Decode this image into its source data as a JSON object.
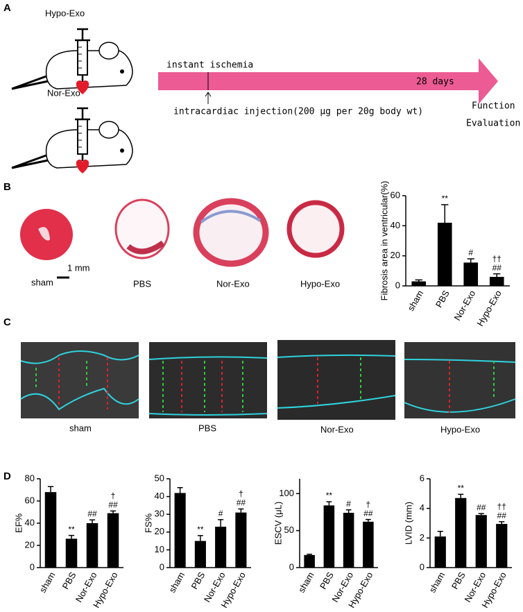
{
  "panel_labels": [
    "A",
    "B",
    "C",
    "D"
  ],
  "schematic": {
    "groups": [
      "Hypo-Exo",
      "Nor-Exo"
    ],
    "start": "instant ischemia",
    "duration": "28 days",
    "injection": "intracardiac injection(200 μg per 20g body wt)",
    "endpoint": [
      "Function",
      "Evaluation"
    ]
  },
  "heart_sections": {
    "labels": [
      "sham",
      "PBS",
      "Nor-Exo",
      "Hypo-Exo"
    ],
    "scale_bar": "1 mm"
  },
  "echo": {
    "labels": [
      "sham",
      "PBS",
      "Nor-Exo",
      "Hypo-Exo"
    ]
  },
  "chart_data": [
    {
      "type": "bar",
      "ylabel": "Fibrosis area in ventricular(%)",
      "categories": [
        "sham",
        "PBS",
        "Nor-Exo",
        "Hypo-Exo"
      ],
      "values": [
        3,
        42,
        15.5,
        6
      ],
      "errors": [
        1,
        12,
        2.5,
        2
      ],
      "annotations": [
        [],
        [
          "**"
        ],
        [
          "#"
        ],
        [
          "††",
          "##"
        ]
      ],
      "ylim": [
        0,
        60
      ],
      "yticks": [
        0,
        20,
        40,
        60
      ],
      "color": "#000000"
    },
    {
      "type": "bar",
      "ylabel": "EF%",
      "categories": [
        "sham",
        "PBS",
        "Nor-Exo",
        "Hypo-Exo"
      ],
      "values": [
        68,
        26,
        40,
        49
      ],
      "errors": [
        5,
        3,
        3,
        2
      ],
      "annotations": [
        [],
        [
          "**"
        ],
        [
          "##"
        ],
        [
          "†",
          "##"
        ]
      ],
      "ylim": [
        0,
        80
      ],
      "yticks": [
        0,
        20,
        40,
        60,
        80
      ],
      "color": "#000000"
    },
    {
      "type": "bar",
      "ylabel": "FS%",
      "categories": [
        "sham",
        "PBS",
        "Nor-Exo",
        "Hypo-Exo"
      ],
      "values": [
        42,
        15,
        23,
        31
      ],
      "errors": [
        3,
        3,
        4,
        2
      ],
      "annotations": [
        [],
        [
          "**"
        ],
        [
          "#"
        ],
        [
          "†",
          "##"
        ]
      ],
      "ylim": [
        0,
        50
      ],
      "yticks": [
        0,
        10,
        20,
        30,
        40,
        50
      ],
      "color": "#000000"
    },
    {
      "type": "bar",
      "ylabel": "ESCV (μL)",
      "categories": [
        "sham",
        "PBS",
        "Nor-Exo",
        "Hypo-Exo"
      ],
      "values": [
        17,
        84,
        74,
        62
      ],
      "errors": [
        1,
        5,
        4,
        3
      ],
      "annotations": [
        [],
        [
          "**"
        ],
        [
          "#"
        ],
        [
          "†",
          "##"
        ]
      ],
      "ylim": [
        0,
        120
      ],
      "yticks": [
        0,
        50,
        100
      ],
      "color": "#000000"
    },
    {
      "type": "bar",
      "ylabel": "LVID (mm)",
      "categories": [
        "sham",
        "PBS",
        "Nor-Exo",
        "Hypo-Exo"
      ],
      "values": [
        2.1,
        4.7,
        3.55,
        2.95
      ],
      "errors": [
        0.35,
        0.25,
        0.1,
        0.15
      ],
      "annotations": [
        [],
        [
          "**"
        ],
        [
          "##"
        ],
        [
          "††",
          "##"
        ]
      ],
      "ylim": [
        0,
        6
      ],
      "yticks": [
        0,
        2,
        4,
        6
      ],
      "color": "#000000"
    }
  ]
}
